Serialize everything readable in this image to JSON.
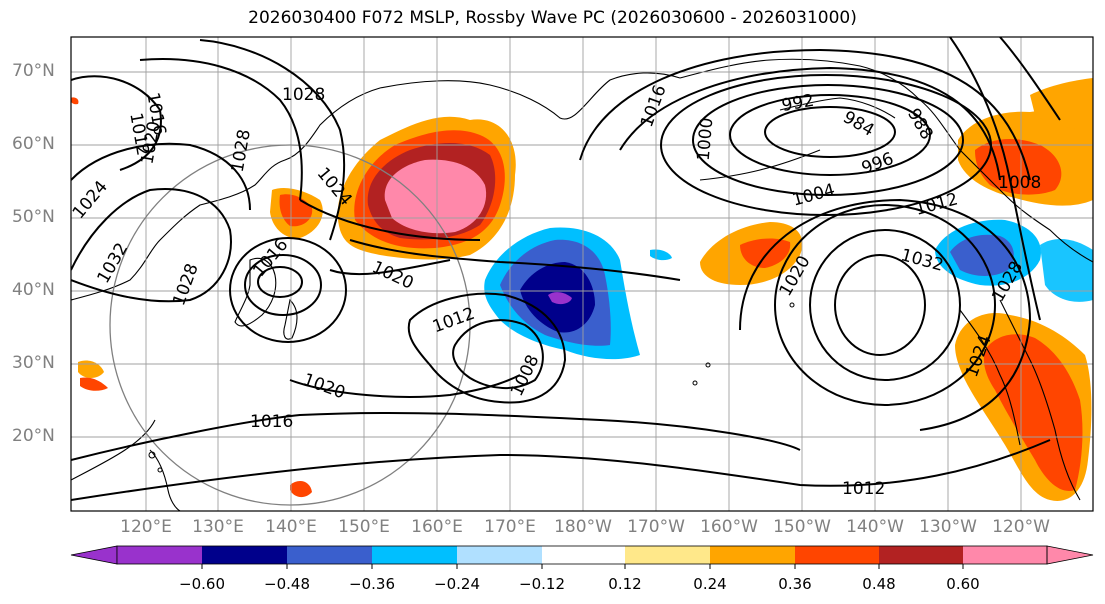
{
  "title": "2026030400 F072 MSLP, Rossby Wave PC (2026030600 - 2026031000)",
  "latitude_labels": [
    "70°N",
    "60°N",
    "50°N",
    "40°N",
    "30°N",
    "20°N"
  ],
  "longitude_labels": [
    "120°E",
    "130°E",
    "140°E",
    "150°E",
    "160°E",
    "170°E",
    "180°W",
    "170°W",
    "160°W",
    "150°W",
    "140°W",
    "130°W",
    "120°W"
  ],
  "isobar_labels": [
    "1028",
    "1016",
    "1012",
    "1020",
    "1028",
    "1024",
    "1024",
    "1032",
    "1028",
    "1016",
    "1020",
    "1012",
    "1008",
    "1020",
    "1016",
    "1012",
    "1016",
    "1000",
    "992",
    "984",
    "988",
    "996",
    "1004",
    "1012",
    "1008",
    "1020",
    "1032",
    "1028",
    "1024"
  ],
  "colorbar": {
    "tick_labels": [
      "−0.60",
      "−0.48",
      "−0.36",
      "−0.24",
      "−0.12",
      "0.12",
      "0.24",
      "0.36",
      "0.48",
      "0.60"
    ],
    "colors": [
      "#9932cc",
      "#00008b",
      "#3a5fcd",
      "#00bfff",
      "#b0e0ff",
      "#ffffff",
      "#ffe88a",
      "#ffa500",
      "#ff4500",
      "#b22222",
      "#ff88aa"
    ]
  },
  "colors": {
    "coastline": "#000000",
    "isobar": "#000000",
    "grid": "#a0a0a0",
    "frame": "#000000"
  }
}
